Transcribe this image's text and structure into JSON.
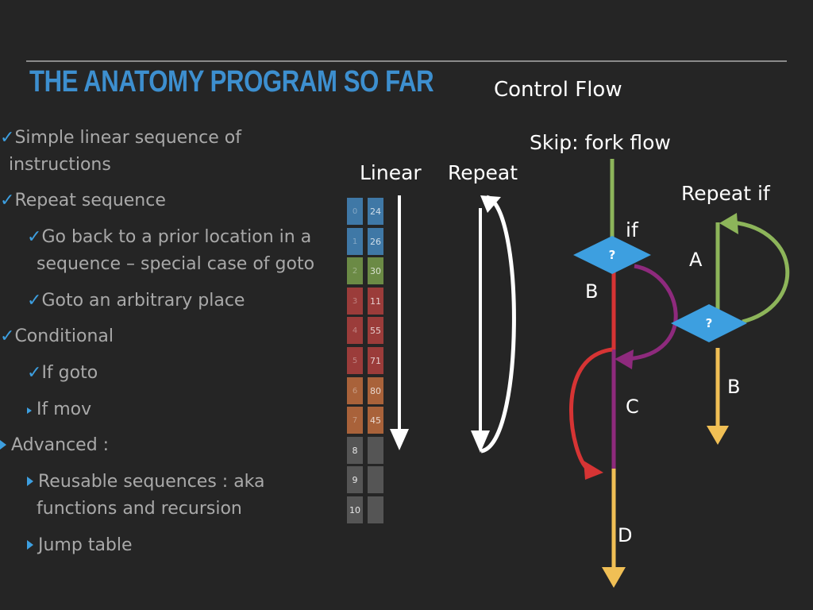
{
  "title": "THE ANATOMY PROGRAM SO FAR",
  "bullets": [
    {
      "marker": "✓",
      "text": "Simple linear sequence of",
      "text2": "instructions"
    },
    {
      "marker": "✓",
      "text": "Repeat sequence"
    },
    {
      "marker": "✓",
      "text": "Go back to a prior location in a",
      "text2": "sequence – special case of goto"
    },
    {
      "marker": "✓",
      "text": "Goto an arbitrary  place"
    },
    {
      "marker": "✓",
      "text": "Conditional"
    },
    {
      "marker": "✓",
      "text": "If goto"
    },
    {
      "marker": "triangle",
      "text": "If mov"
    },
    {
      "marker": "triangle",
      "text": "Advanced :"
    },
    {
      "marker": "triangle",
      "text": "Reusable sequences : aka",
      "text2": "functions and recursion"
    },
    {
      "marker": "triangle",
      "text": "Jump table"
    }
  ],
  "memory": [
    {
      "index": "0",
      "value": "24",
      "color": "#3f78a6"
    },
    {
      "index": "1",
      "value": "26",
      "color": "#3f78a6"
    },
    {
      "index": "2",
      "value": "30",
      "color": "#6b8a45"
    },
    {
      "index": "3",
      "value": "11",
      "color": "#9b3c3a"
    },
    {
      "index": "4",
      "value": "55",
      "color": "#9b3c3a"
    },
    {
      "index": "5",
      "value": "71",
      "color": "#9b3c3a"
    },
    {
      "index": "6",
      "value": "80",
      "color": "#a9623a"
    },
    {
      "index": "7",
      "value": "45",
      "color": "#a9623a"
    },
    {
      "index": "8",
      "value": "",
      "color": "#555555"
    },
    {
      "index": "9",
      "value": "",
      "color": "#555555"
    },
    {
      "index": "10",
      "value": "",
      "color": "#555555"
    }
  ],
  "labels": {
    "control_flow": "Control Flow",
    "linear": "Linear",
    "repeat": "Repeat",
    "skip": "Skip: fork flow",
    "repeat_if": "Repeat if",
    "if": "if",
    "question": "?",
    "B": "B",
    "C": "C",
    "D": "D",
    "A": "A",
    "B2": "B"
  },
  "colors": {
    "title": "#3d8fcf",
    "check": "#3d9fe0",
    "green": "#8db55a",
    "purple": "#8e2a7d",
    "red": "#d63434",
    "yellow": "#f0bf55",
    "diamond": "#3d9fe0"
  }
}
